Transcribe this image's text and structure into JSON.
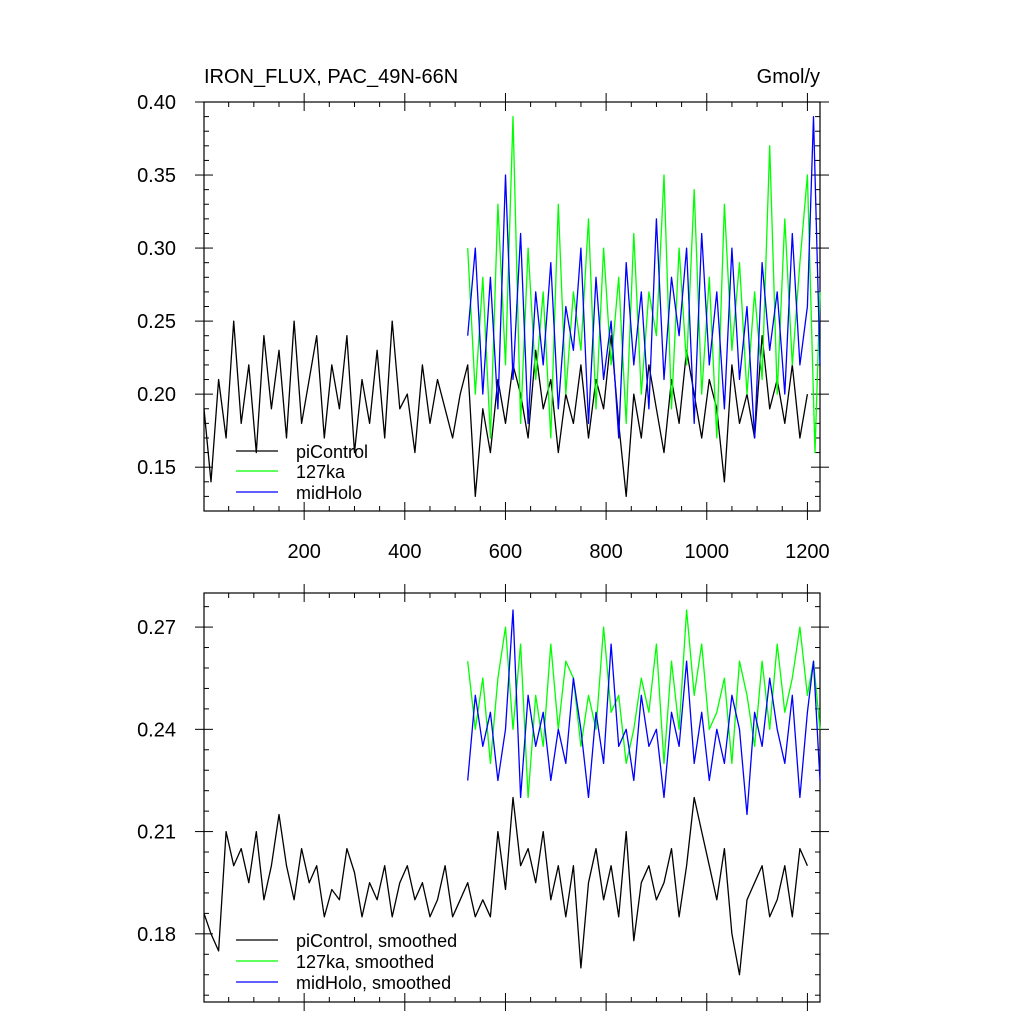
{
  "chart_data": [
    {
      "type": "line",
      "title_left": "IRON_FLUX, PAC_49N-66N",
      "title_right": "Gmol/y",
      "xlim": [
        1,
        1225
      ],
      "ylim": [
        0.12,
        0.4
      ],
      "x_ticks": [
        200,
        400,
        600,
        800,
        1000,
        1200
      ],
      "x_tick_labels": [
        "200",
        "400",
        "600",
        "800",
        "1000",
        "1200"
      ],
      "y_ticks": [
        0.15,
        0.2,
        0.25,
        0.3,
        0.35,
        0.4
      ],
      "y_tick_labels": [
        "0.15",
        "0.20",
        "0.25",
        "0.30",
        "0.35",
        "0.40"
      ],
      "legend_position": "bottom-left",
      "series": [
        {
          "name": "piControl",
          "color": "#000000",
          "x": [
            1,
            15,
            30,
            45,
            60,
            75,
            90,
            105,
            120,
            135,
            150,
            165,
            180,
            195,
            210,
            225,
            240,
            255,
            270,
            285,
            300,
            315,
            330,
            345,
            360,
            375,
            390,
            405,
            420,
            435,
            450,
            465,
            480,
            495,
            510,
            525,
            540,
            555,
            570,
            585,
            600,
            615,
            630,
            645,
            660,
            675,
            690,
            705,
            720,
            735,
            750,
            765,
            780,
            795,
            810,
            825,
            840,
            855,
            870,
            885,
            900,
            915,
            930,
            945,
            960,
            975,
            990,
            1005,
            1020,
            1035,
            1050,
            1065,
            1080,
            1095,
            1110,
            1125,
            1140,
            1155,
            1170,
            1185,
            1200
          ],
          "y": [
            0.19,
            0.14,
            0.21,
            0.17,
            0.25,
            0.18,
            0.22,
            0.16,
            0.24,
            0.19,
            0.23,
            0.17,
            0.25,
            0.18,
            0.21,
            0.24,
            0.17,
            0.22,
            0.19,
            0.24,
            0.16,
            0.21,
            0.18,
            0.23,
            0.17,
            0.25,
            0.19,
            0.2,
            0.16,
            0.22,
            0.18,
            0.21,
            0.19,
            0.17,
            0.2,
            0.22,
            0.13,
            0.19,
            0.16,
            0.21,
            0.18,
            0.22,
            0.2,
            0.17,
            0.23,
            0.19,
            0.21,
            0.16,
            0.2,
            0.18,
            0.22,
            0.17,
            0.21,
            0.19,
            0.24,
            0.18,
            0.13,
            0.2,
            0.17,
            0.22,
            0.19,
            0.16,
            0.21,
            0.18,
            0.23,
            0.2,
            0.17,
            0.21,
            0.19,
            0.14,
            0.22,
            0.18,
            0.2,
            0.17,
            0.24,
            0.19,
            0.21,
            0.18,
            0.22,
            0.17,
            0.2
          ]
        },
        {
          "name": "127ka",
          "color": "#00ff00",
          "x": [
            525,
            540,
            555,
            570,
            585,
            600,
            615,
            630,
            645,
            660,
            675,
            690,
            705,
            720,
            735,
            750,
            765,
            780,
            795,
            810,
            825,
            840,
            855,
            870,
            885,
            900,
            915,
            930,
            945,
            960,
            975,
            990,
            1005,
            1020,
            1035,
            1050,
            1065,
            1080,
            1095,
            1110,
            1125,
            1140,
            1155,
            1170,
            1185,
            1200,
            1215,
            1225
          ],
          "y": [
            0.3,
            0.2,
            0.28,
            0.17,
            0.33,
            0.22,
            0.39,
            0.18,
            0.3,
            0.21,
            0.27,
            0.17,
            0.33,
            0.2,
            0.27,
            0.23,
            0.32,
            0.19,
            0.3,
            0.22,
            0.28,
            0.18,
            0.31,
            0.2,
            0.27,
            0.24,
            0.35,
            0.19,
            0.3,
            0.22,
            0.34,
            0.2,
            0.28,
            0.17,
            0.33,
            0.23,
            0.29,
            0.2,
            0.27,
            0.21,
            0.37,
            0.2,
            0.32,
            0.22,
            0.29,
            0.35,
            0.16,
            0.27
          ]
        },
        {
          "name": "midHolo",
          "color": "#0000ff",
          "x": [
            525,
            540,
            555,
            570,
            585,
            600,
            615,
            630,
            645,
            660,
            675,
            690,
            705,
            720,
            735,
            750,
            765,
            780,
            795,
            810,
            825,
            840,
            855,
            870,
            885,
            900,
            915,
            930,
            945,
            960,
            975,
            990,
            1005,
            1020,
            1035,
            1050,
            1065,
            1080,
            1095,
            1110,
            1125,
            1140,
            1155,
            1170,
            1185,
            1200,
            1212,
            1225
          ],
          "y": [
            0.24,
            0.3,
            0.2,
            0.28,
            0.19,
            0.35,
            0.21,
            0.31,
            0.18,
            0.27,
            0.22,
            0.29,
            0.19,
            0.26,
            0.23,
            0.3,
            0.18,
            0.28,
            0.21,
            0.25,
            0.17,
            0.29,
            0.22,
            0.27,
            0.19,
            0.32,
            0.21,
            0.28,
            0.24,
            0.3,
            0.18,
            0.31,
            0.22,
            0.27,
            0.19,
            0.3,
            0.21,
            0.26,
            0.17,
            0.29,
            0.23,
            0.27,
            0.2,
            0.31,
            0.22,
            0.26,
            0.39,
            0.22
          ]
        }
      ]
    },
    {
      "type": "line",
      "xlim": [
        1,
        1225
      ],
      "ylim": [
        0.16,
        0.28
      ],
      "x_ticks": [
        200,
        400,
        600,
        800,
        1000,
        1200
      ],
      "y_ticks": [
        0.18,
        0.21,
        0.24,
        0.27
      ],
      "y_tick_labels": [
        "0.18",
        "0.21",
        "0.24",
        "0.27"
      ],
      "legend_position": "bottom-left",
      "series": [
        {
          "name": "piControl, smoothed",
          "color": "#000000",
          "x": [
            1,
            15,
            30,
            45,
            60,
            75,
            90,
            105,
            120,
            135,
            150,
            165,
            180,
            195,
            210,
            225,
            240,
            255,
            270,
            285,
            300,
            315,
            330,
            345,
            360,
            375,
            390,
            405,
            420,
            435,
            450,
            465,
            480,
            495,
            510,
            525,
            540,
            555,
            570,
            585,
            600,
            615,
            630,
            645,
            660,
            675,
            690,
            705,
            720,
            735,
            750,
            765,
            780,
            795,
            810,
            825,
            840,
            855,
            870,
            885,
            900,
            915,
            930,
            945,
            960,
            975,
            990,
            1005,
            1020,
            1035,
            1050,
            1065,
            1080,
            1095,
            1110,
            1125,
            1140,
            1155,
            1170,
            1185,
            1200
          ],
          "y": [
            0.186,
            0.18,
            0.175,
            0.21,
            0.2,
            0.205,
            0.195,
            0.21,
            0.19,
            0.2,
            0.215,
            0.2,
            0.19,
            0.205,
            0.195,
            0.2,
            0.185,
            0.193,
            0.19,
            0.205,
            0.198,
            0.185,
            0.195,
            0.19,
            0.2,
            0.185,
            0.195,
            0.2,
            0.19,
            0.195,
            0.185,
            0.19,
            0.2,
            0.185,
            0.19,
            0.195,
            0.185,
            0.19,
            0.185,
            0.21,
            0.193,
            0.22,
            0.2,
            0.205,
            0.195,
            0.21,
            0.19,
            0.2,
            0.185,
            0.2,
            0.17,
            0.195,
            0.205,
            0.19,
            0.2,
            0.185,
            0.21,
            0.178,
            0.195,
            0.2,
            0.19,
            0.195,
            0.205,
            0.185,
            0.2,
            0.22,
            0.21,
            0.2,
            0.19,
            0.205,
            0.18,
            0.168,
            0.19,
            0.195,
            0.2,
            0.185,
            0.19,
            0.2,
            0.185,
            0.205,
            0.2
          ]
        },
        {
          "name": "127ka, smoothed",
          "color": "#00ff00",
          "x": [
            525,
            540,
            555,
            570,
            585,
            600,
            615,
            630,
            645,
            660,
            675,
            690,
            705,
            720,
            735,
            750,
            765,
            780,
            795,
            810,
            825,
            840,
            855,
            870,
            885,
            900,
            915,
            930,
            945,
            960,
            975,
            990,
            1005,
            1020,
            1035,
            1050,
            1065,
            1080,
            1095,
            1110,
            1125,
            1140,
            1155,
            1170,
            1185,
            1200,
            1212,
            1225
          ],
          "y": [
            0.26,
            0.24,
            0.255,
            0.23,
            0.255,
            0.27,
            0.24,
            0.265,
            0.22,
            0.25,
            0.235,
            0.265,
            0.24,
            0.26,
            0.255,
            0.235,
            0.25,
            0.24,
            0.27,
            0.245,
            0.25,
            0.23,
            0.24,
            0.255,
            0.245,
            0.265,
            0.23,
            0.26,
            0.24,
            0.275,
            0.25,
            0.265,
            0.24,
            0.245,
            0.255,
            0.23,
            0.26,
            0.25,
            0.235,
            0.26,
            0.24,
            0.265,
            0.245,
            0.255,
            0.27,
            0.25,
            0.26,
            0.24
          ]
        },
        {
          "name": "midHolo, smoothed",
          "color": "#0000ff",
          "x": [
            525,
            540,
            555,
            570,
            585,
            600,
            615,
            630,
            645,
            660,
            675,
            690,
            705,
            720,
            735,
            750,
            765,
            780,
            795,
            810,
            825,
            840,
            855,
            870,
            885,
            900,
            915,
            930,
            945,
            960,
            975,
            990,
            1005,
            1020,
            1035,
            1050,
            1065,
            1080,
            1095,
            1110,
            1125,
            1140,
            1155,
            1170,
            1185,
            1200,
            1212,
            1225
          ],
          "y": [
            0.225,
            0.25,
            0.235,
            0.245,
            0.225,
            0.24,
            0.275,
            0.22,
            0.25,
            0.235,
            0.245,
            0.225,
            0.24,
            0.23,
            0.255,
            0.24,
            0.22,
            0.245,
            0.23,
            0.265,
            0.235,
            0.24,
            0.225,
            0.25,
            0.235,
            0.24,
            0.22,
            0.245,
            0.235,
            0.26,
            0.23,
            0.245,
            0.225,
            0.24,
            0.23,
            0.25,
            0.24,
            0.215,
            0.245,
            0.235,
            0.255,
            0.24,
            0.23,
            0.25,
            0.22,
            0.245,
            0.26,
            0.225
          ]
        }
      ]
    }
  ]
}
